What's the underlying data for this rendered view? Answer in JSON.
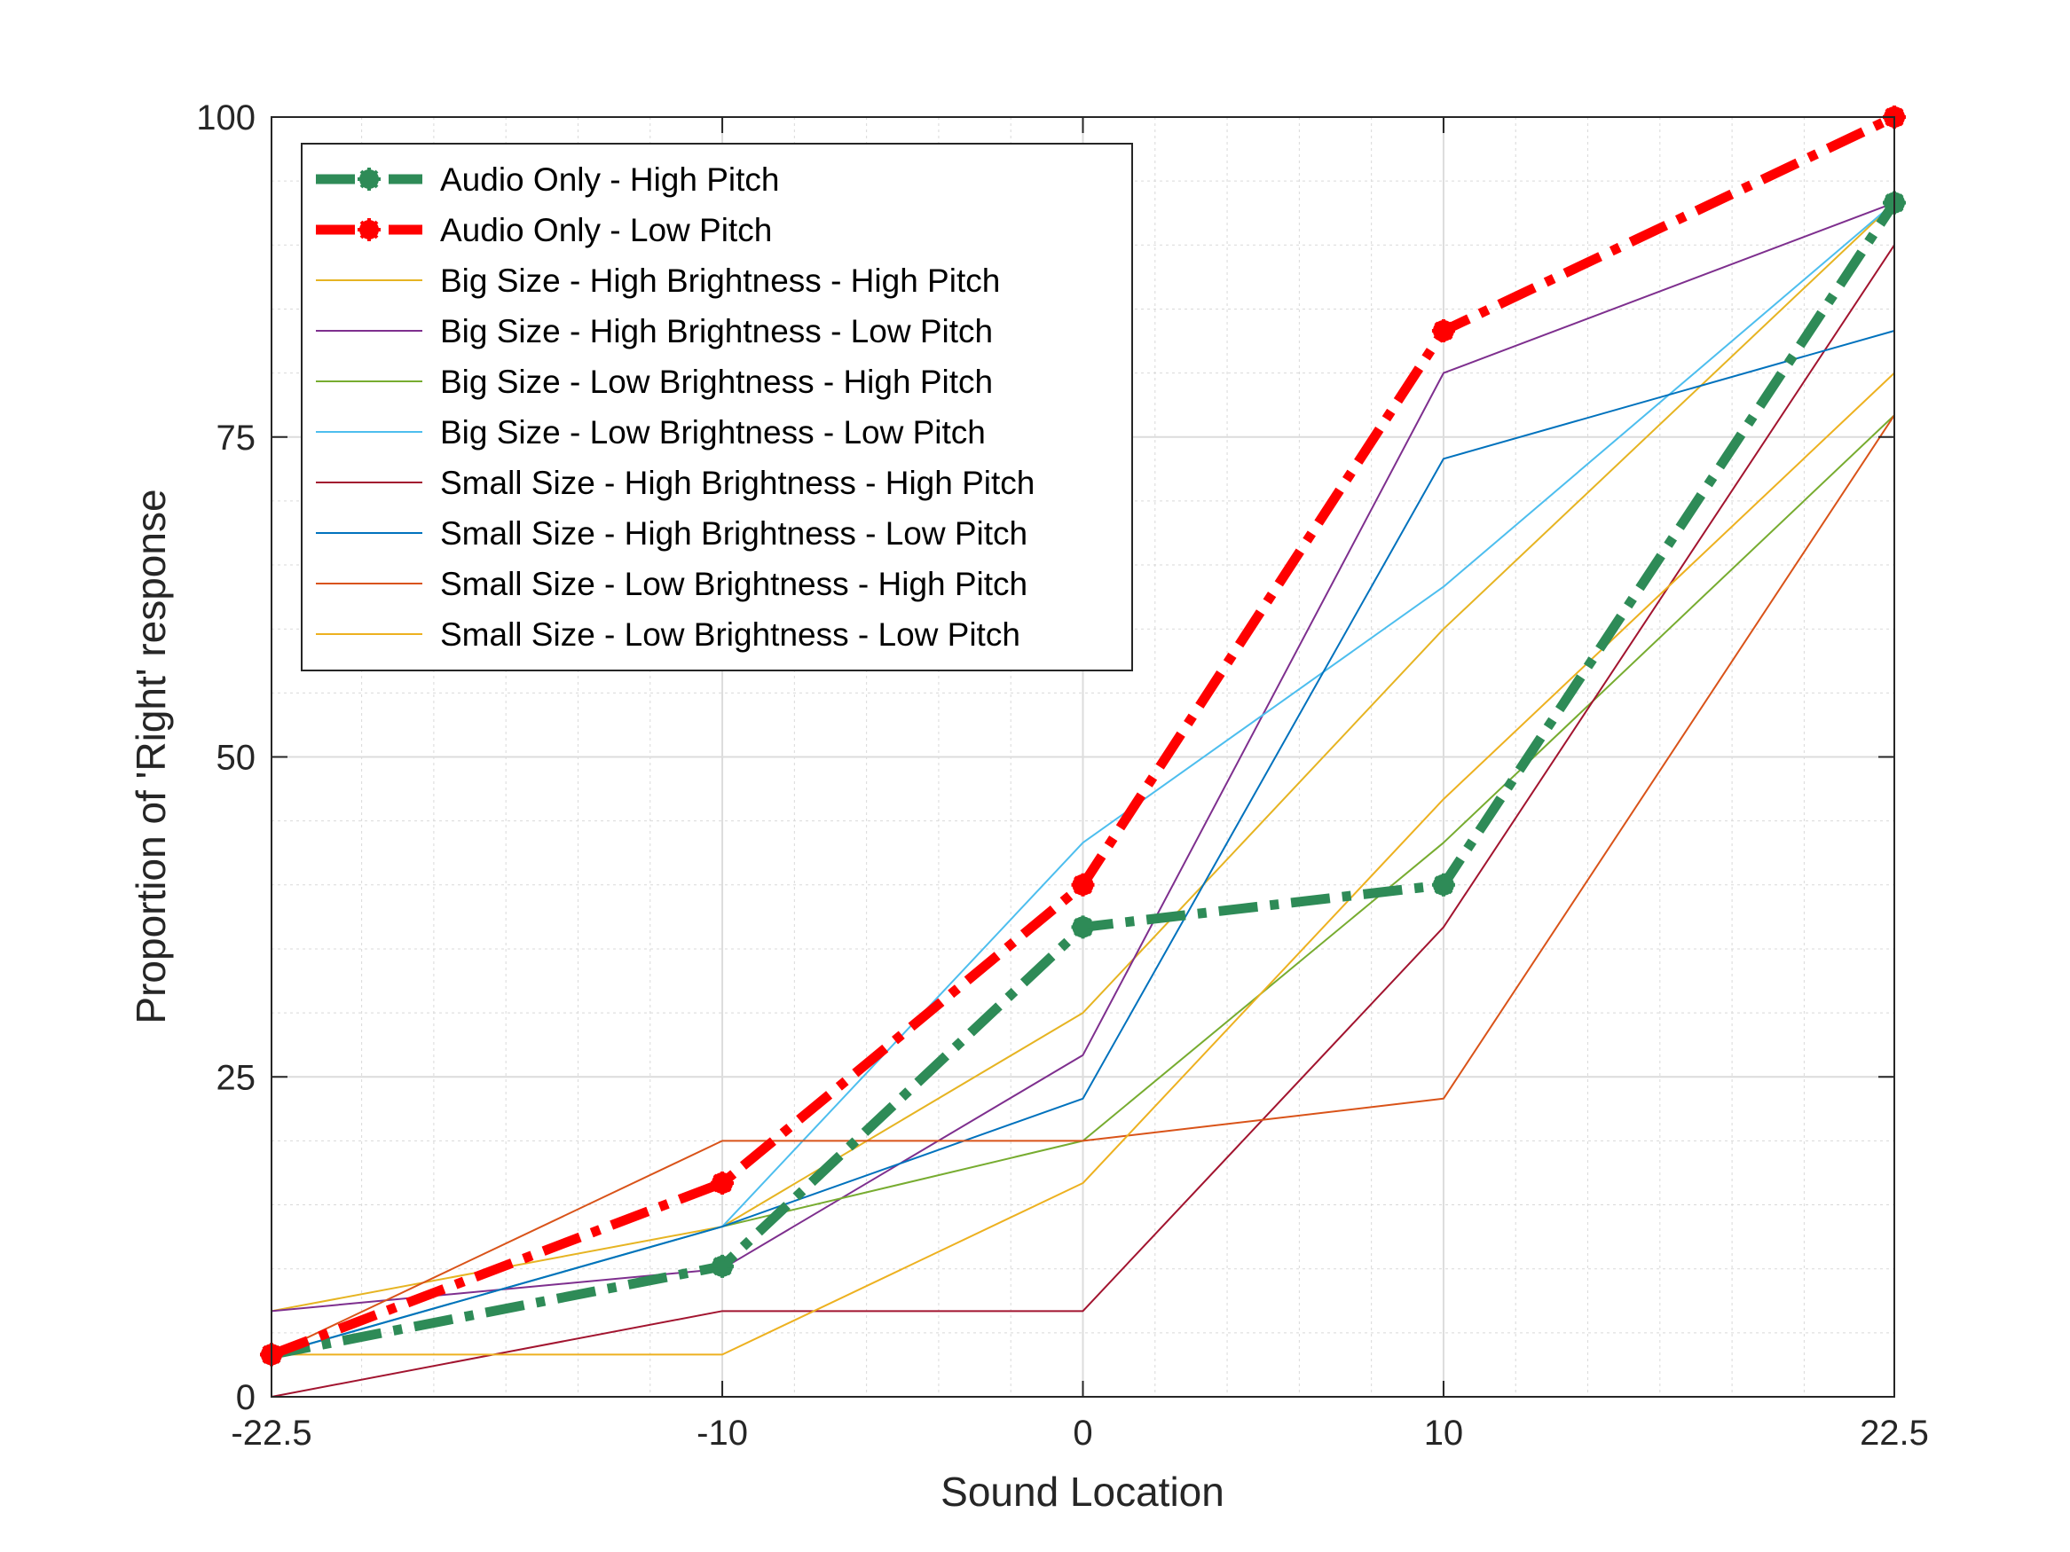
{
  "chart_data": {
    "type": "line",
    "title": "",
    "xlabel": "Sound Location",
    "ylabel": "Proportion of 'Right' response",
    "x": [
      -22.5,
      -10,
      0,
      10,
      22.5
    ],
    "xticks": [
      "-22.5",
      "-10",
      "0",
      "10",
      "22.5"
    ],
    "yticks": [
      "0",
      "25",
      "50",
      "75",
      "100"
    ],
    "xlim": [
      -22.5,
      22.5
    ],
    "ylim": [
      0,
      100
    ],
    "grid": true,
    "minor_grid": true,
    "legend_position": "top-left",
    "series": [
      {
        "name": "Audio Only - High Pitch",
        "color": "#2e8b57",
        "style": "bold-dashdot-markers",
        "values": [
          3.3,
          10.2,
          36.7,
          40.0,
          93.3
        ]
      },
      {
        "name": "Audio Only - Low Pitch",
        "color": "#ff0000",
        "style": "bold-dashdot-markers",
        "values": [
          3.3,
          16.7,
          40.0,
          83.3,
          100
        ]
      },
      {
        "name": "Big Size - High Brightness - High Pitch",
        "color": "#e6b422",
        "style": "thin",
        "values": [
          6.7,
          13.3,
          30.0,
          60.0,
          93.3
        ]
      },
      {
        "name": "Big Size - High Brightness - Low Pitch",
        "color": "#7e2f8e",
        "style": "thin",
        "values": [
          6.7,
          10.0,
          26.7,
          80.0,
          93.3
        ]
      },
      {
        "name": "Big Size - Low Brightness - High Pitch",
        "color": "#77ac30",
        "style": "thin",
        "values": [
          3.3,
          13.3,
          20.0,
          43.3,
          76.7
        ]
      },
      {
        "name": "Big Size - Low Brightness - Low Pitch",
        "color": "#4dbeee",
        "style": "thin",
        "values": [
          3.3,
          13.3,
          43.3,
          63.3,
          93.3
        ]
      },
      {
        "name": "Small Size - High Brightness - High Pitch",
        "color": "#a2142f",
        "style": "thin",
        "values": [
          0,
          6.7,
          6.7,
          36.7,
          90.0
        ]
      },
      {
        "name": "Small Size - High Brightness - Low Pitch",
        "color": "#0072bd",
        "style": "thin",
        "values": [
          3.3,
          13.3,
          23.3,
          73.3,
          83.3
        ]
      },
      {
        "name": "Small Size - Low Brightness - High Pitch",
        "color": "#d95319",
        "style": "thin",
        "values": [
          3.3,
          20.0,
          20.0,
          23.3,
          76.7
        ]
      },
      {
        "name": "Small Size - Low Brightness - Low Pitch",
        "color": "#edb120",
        "style": "thin",
        "values": [
          3.3,
          3.3,
          16.7,
          46.7,
          80.0
        ]
      }
    ]
  }
}
